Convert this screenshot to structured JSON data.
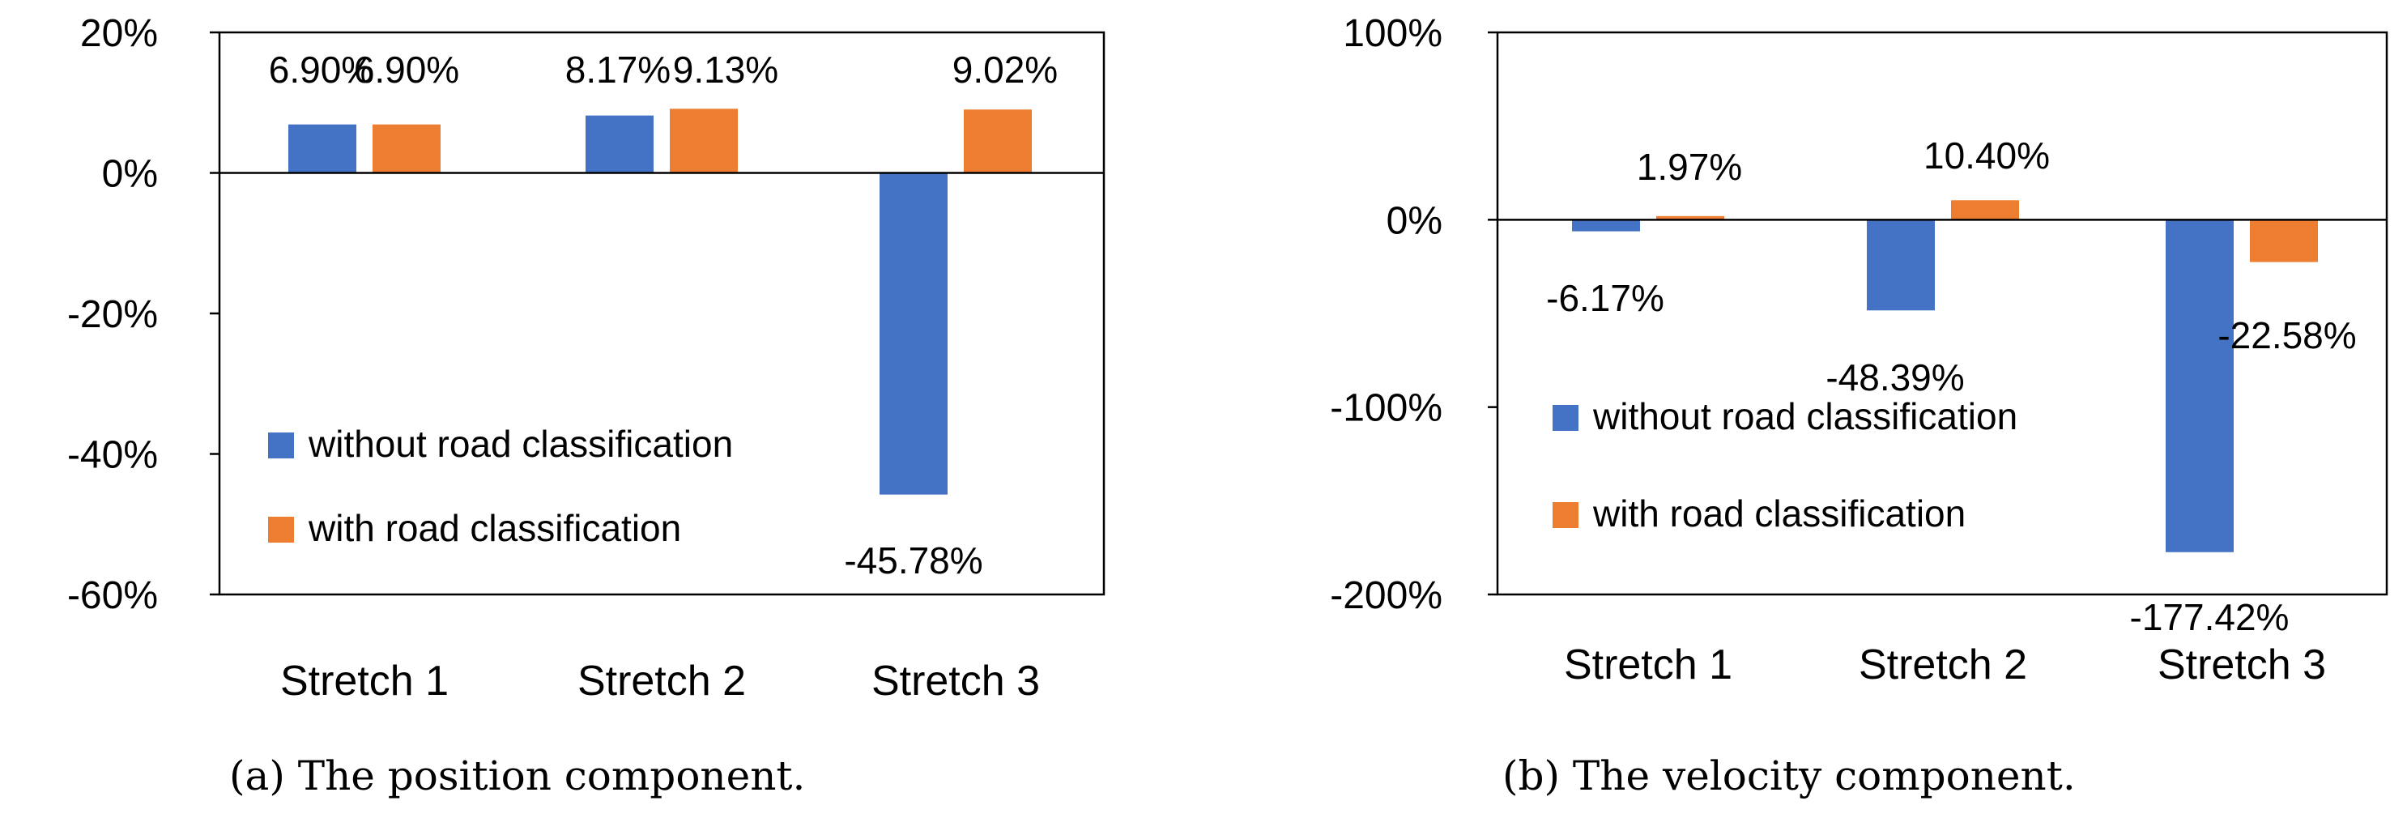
{
  "chart_data": [
    {
      "type": "bar",
      "title": "",
      "caption": "(a)  The position component.",
      "categories": [
        "Stretch 1",
        "Stretch 2",
        "Stretch 3"
      ],
      "ylim": [
        -60,
        20
      ],
      "yticks": [
        20,
        0,
        -20,
        -40,
        -60
      ],
      "ytick_labels": [
        "20%",
        "0%",
        "-20%",
        "-40%",
        "-60%"
      ],
      "xlabel": "",
      "ylabel": "",
      "grid": false,
      "legend_position": "bottom-left",
      "series": [
        {
          "name": "without road classification",
          "color": "#4472C4",
          "values": [
            6.9,
            8.17,
            -45.78
          ],
          "labels": [
            "6.90%",
            "8.17%",
            "-45.78%"
          ]
        },
        {
          "name": "with road classification",
          "color": "#ED7D31",
          "values": [
            6.9,
            9.13,
            9.02
          ],
          "labels": [
            "6.90%",
            "9.13%",
            "9.02%"
          ]
        }
      ]
    },
    {
      "type": "bar",
      "title": "",
      "caption": "(b)  The velocity component.",
      "categories": [
        "Stretch 1",
        "Stretch 2",
        "Stretch 3"
      ],
      "ylim": [
        -200,
        100
      ],
      "yticks": [
        100,
        0,
        -100,
        -200
      ],
      "ytick_labels": [
        "100%",
        "0%",
        "-100%",
        "-200%"
      ],
      "xlabel": "",
      "ylabel": "",
      "grid": false,
      "legend_position": "bottom-left",
      "series": [
        {
          "name": "without road classification",
          "color": "#4472C4",
          "values": [
            -6.17,
            -48.39,
            -177.42
          ],
          "labels": [
            "-6.17%",
            "-48.39%",
            "-177.42%"
          ]
        },
        {
          "name": "with road classification",
          "color": "#ED7D31",
          "values": [
            1.97,
            10.4,
            -22.58
          ],
          "labels": [
            "1.97%",
            "10.40%",
            "-22.58%"
          ]
        }
      ]
    }
  ]
}
